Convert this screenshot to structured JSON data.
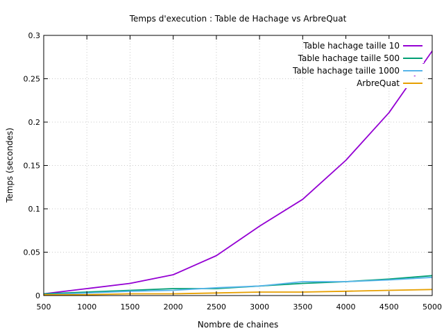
{
  "chart_data": {
    "type": "line",
    "title": "Temps d'execution : Table de Hachage vs ArbreQuat",
    "xlabel": "Nombre de chaines",
    "ylabel": "Temps (secondes)",
    "xlim": [
      500,
      5000
    ],
    "ylim": [
      0,
      0.3
    ],
    "grid": true,
    "legend_position": "top-right",
    "x_ticks": [
      "500",
      "1000",
      "1500",
      "2000",
      "2500",
      "3000",
      "3500",
      "4000",
      "4500",
      "5000"
    ],
    "y_ticks": [
      "0",
      "0.05",
      "0.1",
      "0.15",
      "0.2",
      "0.25",
      "0.3"
    ],
    "x": [
      500,
      1000,
      1500,
      2000,
      2500,
      3000,
      3500,
      4000,
      4500,
      5000
    ],
    "series": [
      {
        "name": "Table hachage taille 10",
        "color": "#9400d3",
        "values": [
          0.002,
          0.008,
          0.014,
          0.024,
          0.046,
          0.08,
          0.111,
          0.156,
          0.211,
          0.282
        ]
      },
      {
        "name": "Table hachage taille 500",
        "color": "#009e73",
        "values": [
          0.002,
          0.004,
          0.006,
          0.008,
          0.008,
          0.011,
          0.014,
          0.016,
          0.019,
          0.023
        ]
      },
      {
        "name": "Table hachage taille 1000",
        "color": "#56b4e9",
        "values": [
          0.001,
          0.003,
          0.005,
          0.006,
          0.009,
          0.011,
          0.016,
          0.016,
          0.018,
          0.021
        ]
      },
      {
        "name": "ArbreQuat",
        "color": "#e69f00",
        "values": [
          0.001,
          0.001,
          0.002,
          0.002,
          0.003,
          0.004,
          0.004,
          0.005,
          0.006,
          0.007
        ]
      }
    ]
  }
}
